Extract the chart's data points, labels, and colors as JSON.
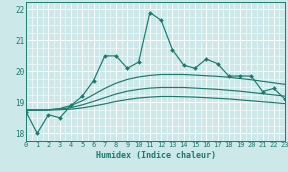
{
  "xlabel": "Humidex (Indice chaleur)",
  "bg_color": "#cce8e8",
  "grid_color": "#ffffff",
  "line_color": "#1a7a6e",
  "ylim": [
    17.75,
    22.25
  ],
  "xlim": [
    0,
    23
  ],
  "yticks": [
    18,
    19,
    20,
    21,
    22
  ],
  "xticks": [
    0,
    1,
    2,
    3,
    4,
    5,
    6,
    7,
    8,
    9,
    10,
    11,
    12,
    13,
    14,
    15,
    16,
    17,
    18,
    19,
    20,
    21,
    22,
    23
  ],
  "main_line": [
    18.7,
    18.0,
    18.6,
    18.5,
    18.9,
    19.2,
    19.7,
    20.5,
    20.5,
    20.1,
    20.3,
    21.9,
    21.65,
    20.7,
    20.2,
    20.1,
    20.4,
    20.25,
    19.85,
    19.85,
    19.85,
    19.35,
    19.45,
    19.1
  ],
  "smooth_top": [
    18.75,
    18.75,
    18.76,
    18.8,
    18.9,
    19.05,
    19.25,
    19.45,
    19.62,
    19.74,
    19.82,
    19.87,
    19.9,
    19.9,
    19.9,
    19.88,
    19.86,
    19.84,
    19.81,
    19.77,
    19.73,
    19.68,
    19.63,
    19.58
  ],
  "smooth_mid": [
    18.75,
    18.75,
    18.76,
    18.78,
    18.83,
    18.92,
    19.03,
    19.15,
    19.27,
    19.36,
    19.42,
    19.46,
    19.48,
    19.48,
    19.48,
    19.46,
    19.44,
    19.42,
    19.39,
    19.36,
    19.32,
    19.28,
    19.24,
    19.2
  ],
  "smooth_bot": [
    18.75,
    18.75,
    18.75,
    18.76,
    18.78,
    18.82,
    18.88,
    18.95,
    19.03,
    19.09,
    19.14,
    19.17,
    19.19,
    19.19,
    19.18,
    19.17,
    19.15,
    19.13,
    19.11,
    19.08,
    19.05,
    19.02,
    18.99,
    18.96
  ]
}
